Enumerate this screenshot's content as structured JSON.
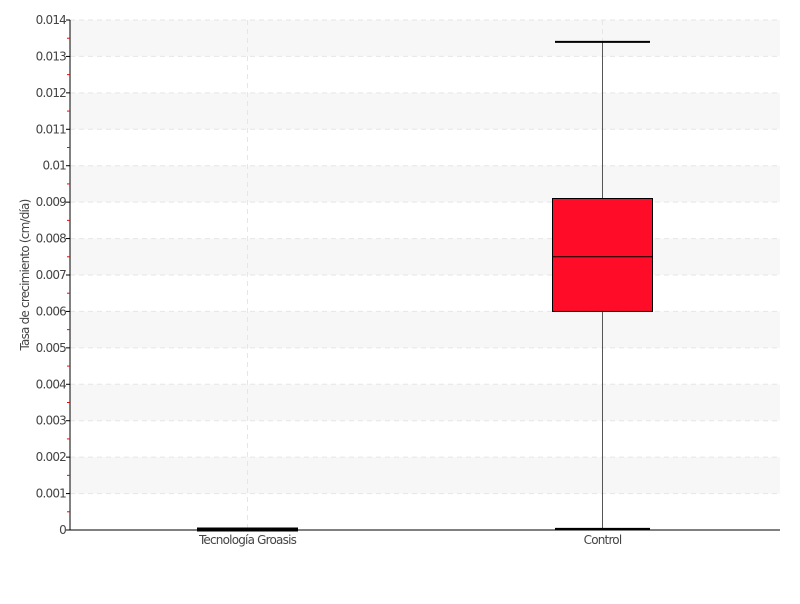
{
  "chart_data": {
    "type": "box",
    "title": "",
    "xlabel": "",
    "ylabel": "Tasa de crecimiento (cm/día)",
    "ylim": [
      0,
      0.014
    ],
    "yticks": [
      "0",
      "0.001",
      "0.002",
      "0.003",
      "0.004",
      "0.005",
      "0.006",
      "0.007",
      "0.008",
      "0.009",
      "0.01",
      "0.011",
      "0.012",
      "0.013",
      "0.014"
    ],
    "categories": [
      "Tecnología Groasis",
      "Control"
    ],
    "boxes": [
      {
        "category": "Tecnología Groasis",
        "min": 0,
        "q1": 0,
        "median": 0,
        "q3": 0,
        "max": 0
      },
      {
        "category": "Control",
        "min": 3e-05,
        "q1": 0.006,
        "median": 0.0075,
        "q3": 0.0091,
        "max": 0.0134
      }
    ],
    "grid": true,
    "colors": {
      "box_fill": "#ff0d28",
      "minor_tick": "#ff0000",
      "band": "#f7f7f7"
    }
  }
}
